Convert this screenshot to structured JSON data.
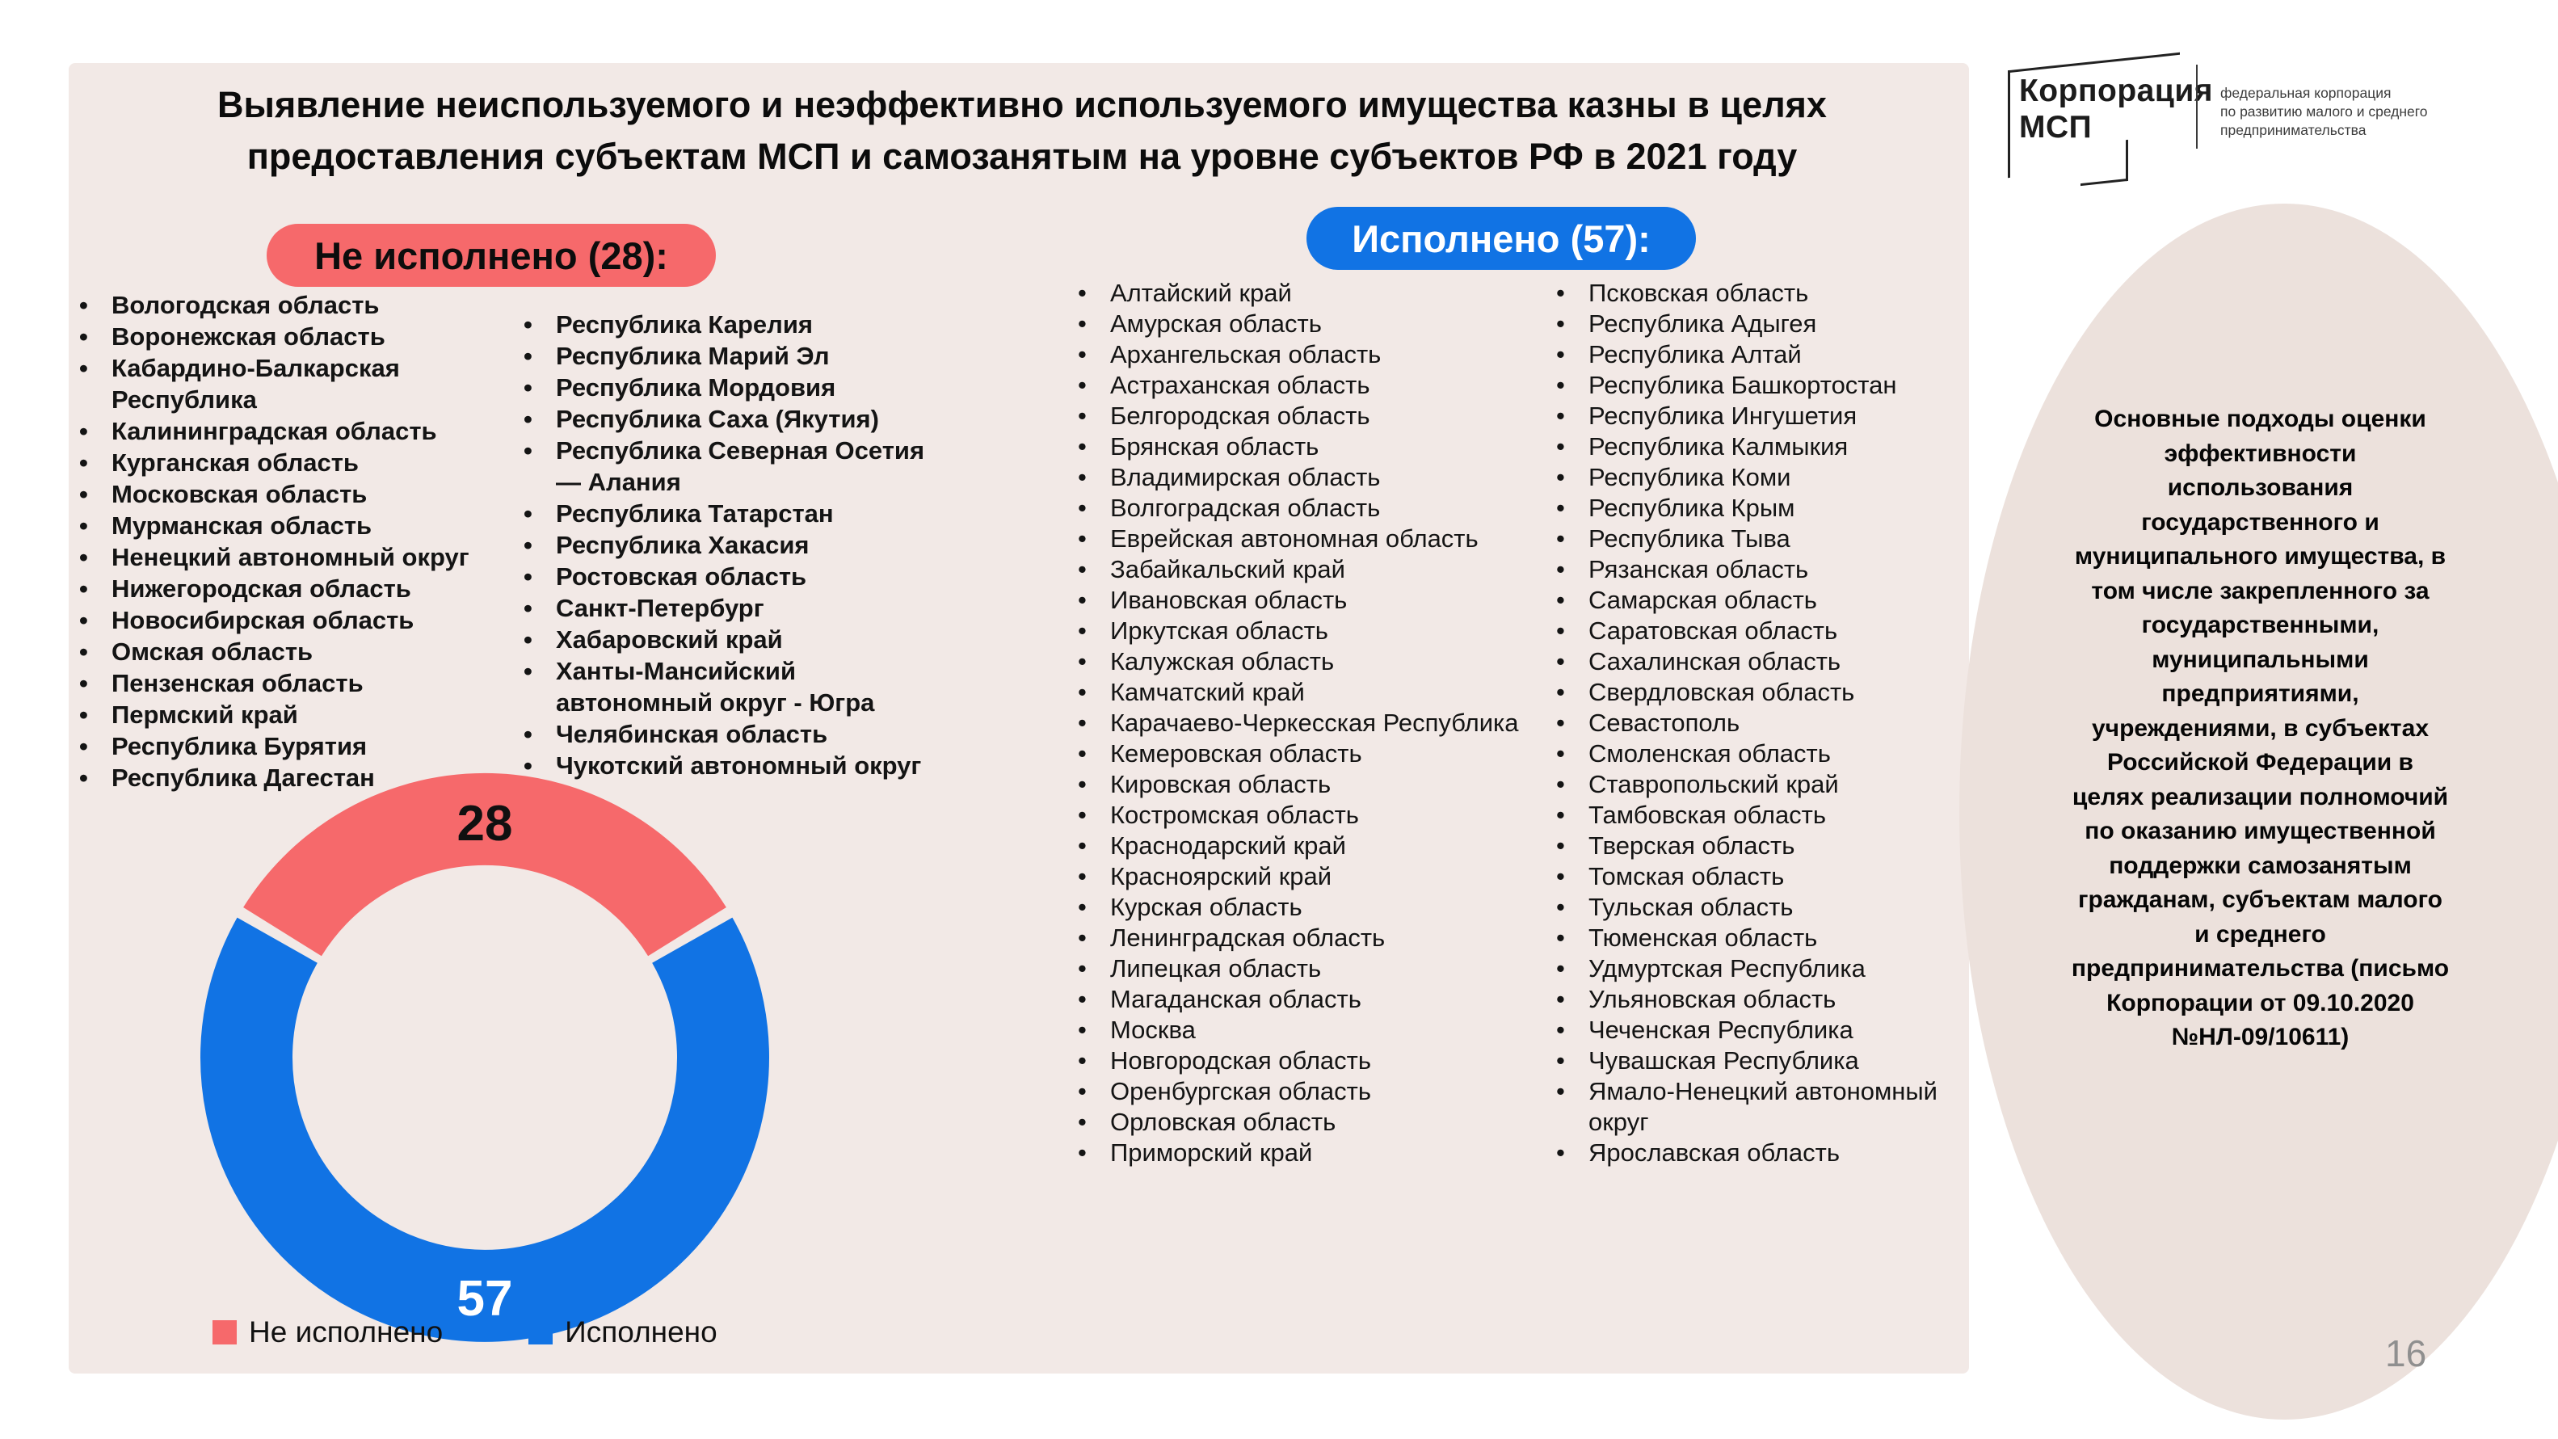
{
  "slide": {
    "title_lines": [
      "Выявление неиспользуемого и неэффективно используемого имущества казны в целях",
      "предоставления субъектам МСП и самозанятым на уровне субъектов РФ в 2021 году"
    ],
    "page_number": "16"
  },
  "not_executed": {
    "badge": "Не исполнено (28):",
    "count": 28,
    "col1": [
      "Вологодская область",
      "Воронежская область",
      "Кабардино-Балкарская Республика",
      "Калининградская область",
      "Курганская область",
      "Московская область",
      "Мурманская область",
      "Ненецкий автономный округ",
      "Нижегородская область",
      "Новосибирская область",
      "Омская область",
      "Пензенская область",
      "Пермский край",
      "Республика Бурятия",
      "Республика Дагестан"
    ],
    "col2": [
      "Республика Карелия",
      "Республика Марий Эл",
      "Республика Мордовия",
      "Республика Саха (Якутия)",
      "Республика Северная Осетия — Алания",
      "Республика Татарстан",
      "Республика Хакасия",
      "Ростовская область",
      "Санкт-Петербург",
      "Хабаровский край",
      "Ханты-Мансийский автономный округ - Югра",
      "Челябинская область",
      "Чукотский автономный округ"
    ]
  },
  "executed": {
    "badge": "Исполнено (57):",
    "count": 57,
    "col1": [
      "Алтайский край",
      "Амурская область",
      "Архангельская область",
      "Астраханская область",
      "Белгородская область",
      "Брянская область",
      "Владимирская область",
      "Волгоградская область",
      "Еврейская автономная область",
      "Забайкальский край",
      "Ивановская область",
      "Иркутская область",
      "Калужская область",
      "Камчатский край",
      "Карачаево-Черкесская Республика",
      "Кемеровская область",
      "Кировская область",
      "Костромская область",
      "Краснодарский край",
      "Красноярский край",
      "Курская область",
      "Ленинградская область",
      "Липецкая область",
      "Магаданская область",
      "Москва",
      "Новгородская область",
      "Оренбургская область",
      "Орловская область",
      "Приморский край"
    ],
    "col2": [
      "Псковская область",
      "Республика Адыгея",
      "Республика Алтай",
      "Республика Башкортостан",
      "Республика Ингушетия",
      "Республика Калмыкия",
      "Республика Коми",
      "Республика Крым",
      "Республика Тыва",
      "Рязанская область",
      "Самарская область",
      "Саратовская область",
      "Сахалинская область",
      "Свердловская область",
      "Севастополь",
      "Смоленская область",
      "Ставропольский край",
      "Тамбовская область",
      "Тверская область",
      "Томская область",
      "Тульская область",
      "Тюменская область",
      "Удмуртская Республика",
      "Ульяновская область",
      "Чеченская Республика",
      "Чувашская Республика",
      "Ямало-Ненецкий автономный округ",
      "Ярославская область"
    ]
  },
  "chart_data": {
    "type": "pie",
    "subtype": "donut",
    "categories": [
      "Не исполнено",
      "Исполнено"
    ],
    "values": [
      28,
      57
    ],
    "colors": [
      "#f6696b",
      "#1173e4"
    ],
    "legend": [
      "Не исполнено",
      "Исполнено"
    ],
    "legend_position": "bottom",
    "label_positions": "28 on top red segment, 57 on bottom blue segment"
  },
  "legend": {
    "not_executed": "Не исполнено",
    "executed": "Исполнено"
  },
  "logo": {
    "name_line1": "Корпорация",
    "name_line2": "МСП",
    "tagline": [
      "федеральная корпорация",
      "по развитию малого и среднего",
      "предпринимательства"
    ]
  },
  "sidebar_note": "Основные подходы оценки эффективности использования государственного и муниципального имущества, в том числе закрепленного за государственными, муниципальными предприятиями, учреждениями, в субъектах Российской Федерации в целях реализации полномочий по оказанию имущественной поддержки самозанятым гражданам, субъектам малого и среднего предпринимательства (письмо Корпорации от 09.10.2020 №НЛ-09/10611)",
  "colors": {
    "red": "#f6696b",
    "blue": "#1173e4",
    "panel_bg": "#f2e9e6",
    "oval_bg": "#ece1dc",
    "page_number": "#8f8f8f"
  }
}
